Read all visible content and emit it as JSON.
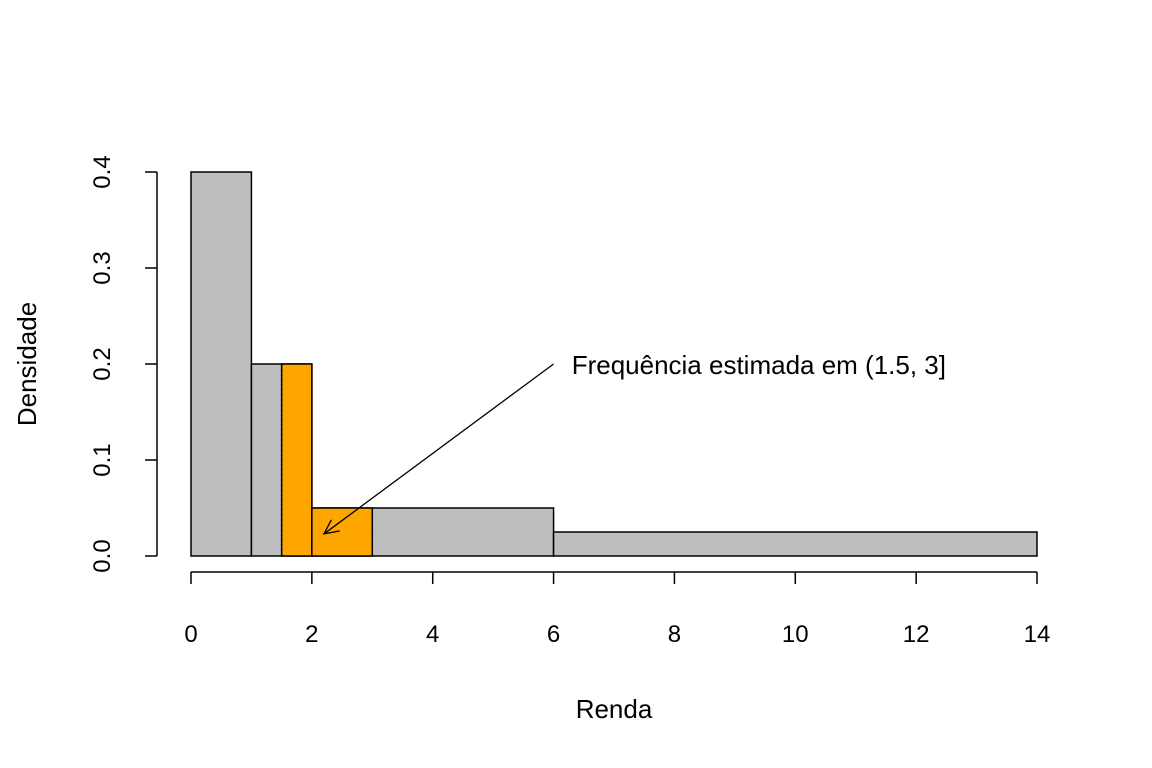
{
  "chart_data": {
    "type": "bar",
    "title": "",
    "xlabel": "Renda",
    "ylabel": "Densidade",
    "xlim": [
      0,
      14
    ],
    "ylim": [
      0,
      0.4
    ],
    "x_ticks": [
      0,
      2,
      4,
      6,
      8,
      10,
      12,
      14
    ],
    "y_ticks": [
      0.0,
      0.1,
      0.2,
      0.3,
      0.4
    ],
    "x_tick_labels": [
      "0",
      "2",
      "4",
      "6",
      "8",
      "10",
      "12",
      "14"
    ],
    "y_tick_labels": [
      "0.0",
      "0.1",
      "0.2",
      "0.3",
      "0.4"
    ],
    "grid": false,
    "bins": [
      {
        "start": 0,
        "end": 1,
        "density": 0.4
      },
      {
        "start": 1,
        "end": 2,
        "density": 0.2
      },
      {
        "start": 2,
        "end": 6,
        "density": 0.05
      },
      {
        "start": 6,
        "end": 14,
        "density": 0.025
      }
    ],
    "highlighted_region": [
      {
        "start": 1.5,
        "end": 2,
        "density": 0.2
      },
      {
        "start": 2,
        "end": 3,
        "density": 0.05
      }
    ],
    "dotted_lines": [
      {
        "x": 1.5,
        "y_top": 0.2
      },
      {
        "x": 3,
        "y_top": 0.05
      }
    ],
    "annotation": {
      "text": "Frequência estimada em (1.5, 3]",
      "text_x": 6.3,
      "text_y": 0.2,
      "arrow_from": [
        6,
        0.2
      ],
      "arrow_to": [
        2.2,
        0.023
      ]
    },
    "colors": {
      "bar_fill": "#bebebe",
      "highlight_fill": "#ffa500",
      "stroke": "#000000"
    }
  }
}
